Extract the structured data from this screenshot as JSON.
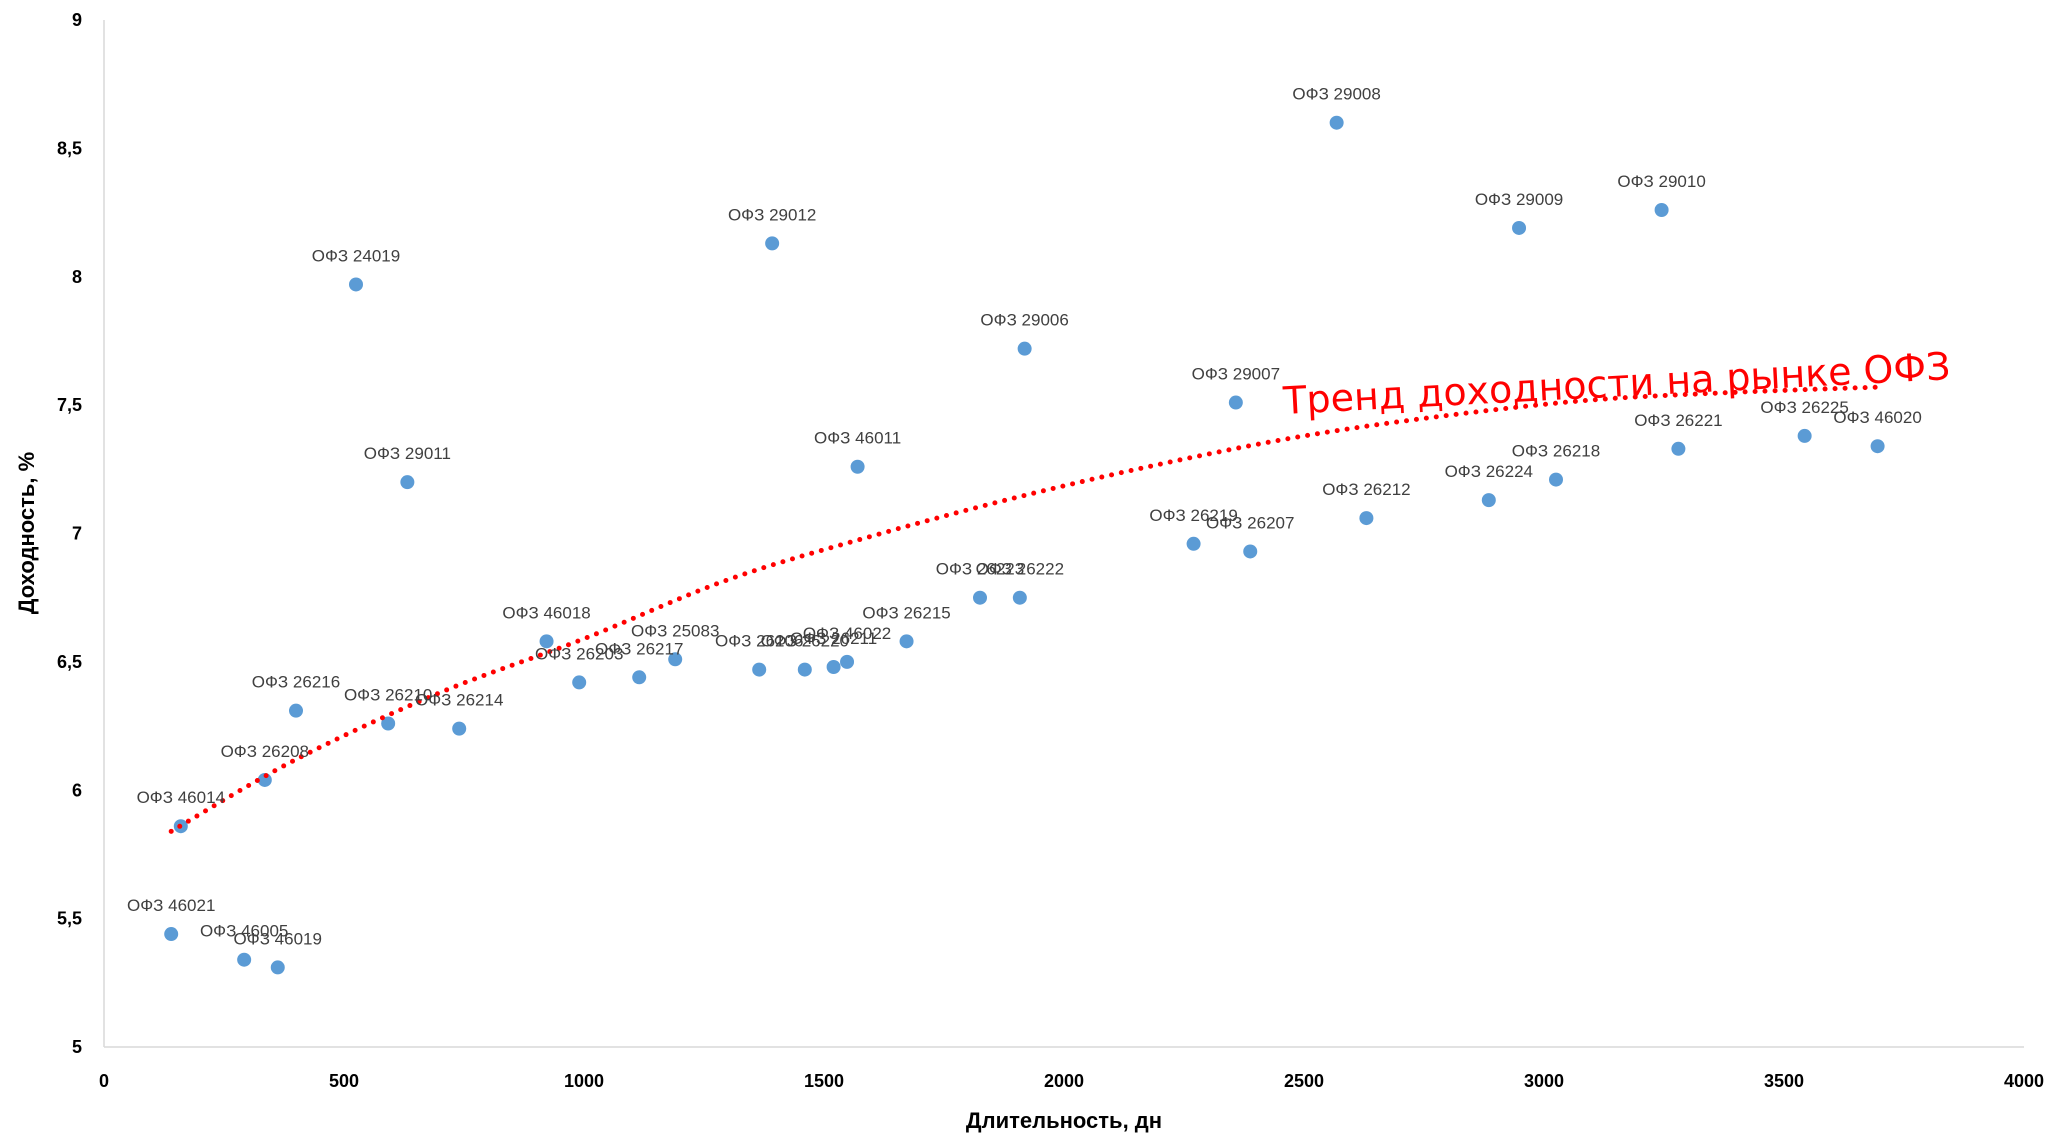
{
  "chart_data": {
    "type": "scatter",
    "xlabel": "Длительность, дн",
    "ylabel": "Доходность, %",
    "xlim": [
      0,
      4000
    ],
    "ylim": [
      5,
      9
    ],
    "xticks": [
      0,
      500,
      1000,
      1500,
      2000,
      2500,
      3000,
      3500,
      4000
    ],
    "xtick_labels": [
      "0",
      "500",
      "1000",
      "1500",
      "2000",
      "2500",
      "3000",
      "3500",
      "4000"
    ],
    "yticks": [
      5,
      5.5,
      6,
      6.5,
      7,
      7.5,
      8,
      8.5,
      9
    ],
    "ytick_labels": [
      "5",
      "5,5",
      "6",
      "6,5",
      "7",
      "7,5",
      "8",
      "8,5",
      "9"
    ],
    "grid": false,
    "point_color": "#5b9bd5",
    "trend_color": "#ff0000",
    "points": [
      {
        "label": "ОФЗ 46014",
        "x": 160,
        "y": 5.86
      },
      {
        "label": "ОФЗ 46021",
        "x": 140,
        "y": 5.44
      },
      {
        "label": "ОФЗ 46005",
        "x": 292,
        "y": 5.34
      },
      {
        "label": "ОФЗ 46019",
        "x": 362,
        "y": 5.31
      },
      {
        "label": "ОФЗ 26208",
        "x": 335,
        "y": 6.04
      },
      {
        "label": "ОФЗ 26216",
        "x": 400,
        "y": 6.31
      },
      {
        "label": "ОФЗ 24019",
        "x": 525,
        "y": 7.97
      },
      {
        "label": "ОФЗ 26210",
        "x": 592,
        "y": 6.26
      },
      {
        "label": "ОФЗ 29011",
        "x": 632,
        "y": 7.2
      },
      {
        "label": "ОФЗ 26214",
        "x": 740,
        "y": 6.24
      },
      {
        "label": "ОФЗ 46018",
        "x": 922,
        "y": 6.58
      },
      {
        "label": "ОФЗ 26203",
        "x": 990,
        "y": 6.42
      },
      {
        "label": "ОФЗ 26217",
        "x": 1115,
        "y": 6.44
      },
      {
        "label": "ОФЗ 25083",
        "x": 1190,
        "y": 6.51
      },
      {
        "label": "ОФЗ 26206",
        "x": 1365,
        "y": 6.47
      },
      {
        "label": "ОФЗ 29012",
        "x": 1392,
        "y": 8.13
      },
      {
        "label": "ОФЗ 26220",
        "x": 1460,
        "y": 6.47
      },
      {
        "label": "ОФЗ 26211",
        "x": 1520,
        "y": 6.48
      },
      {
        "label": "ОФЗ 46022",
        "x": 1548,
        "y": 6.5
      },
      {
        "label": "ОФЗ 46011",
        "x": 1570,
        "y": 7.26
      },
      {
        "label": "ОФЗ 26215",
        "x": 1672,
        "y": 6.58
      },
      {
        "label": "ОФЗ 26223",
        "x": 1825,
        "y": 6.75
      },
      {
        "label": "ОФЗ 26222",
        "x": 1908,
        "y": 6.75
      },
      {
        "label": "ОФЗ 29006",
        "x": 1918,
        "y": 7.72
      },
      {
        "label": "ОФЗ 26219",
        "x": 2270,
        "y": 6.96
      },
      {
        "label": "ОФЗ 29007",
        "x": 2358,
        "y": 7.51
      },
      {
        "label": "ОФЗ 26207",
        "x": 2388,
        "y": 6.93
      },
      {
        "label": "ОФЗ 29008",
        "x": 2568,
        "y": 8.6
      },
      {
        "label": "ОФЗ 26212",
        "x": 2630,
        "y": 7.06
      },
      {
        "label": "ОФЗ 26224",
        "x": 2885,
        "y": 7.13
      },
      {
        "label": "ОФЗ 29009",
        "x": 2948,
        "y": 8.19
      },
      {
        "label": "ОФЗ 26218",
        "x": 3025,
        "y": 7.21
      },
      {
        "label": "ОФЗ 29010",
        "x": 3245,
        "y": 8.26
      },
      {
        "label": "ОФЗ 26221",
        "x": 3280,
        "y": 7.33
      },
      {
        "label": "ОФЗ 26225",
        "x": 3543,
        "y": 7.38
      },
      {
        "label": "ОФЗ 46020",
        "x": 3695,
        "y": 7.34
      }
    ],
    "trend": {
      "label": "Тренд доходности на рынке ОФЗ",
      "x": [
        140,
        400,
        700,
        1000,
        1300,
        1600,
        1900,
        2200,
        2500,
        2800,
        3100,
        3400,
        3695
      ],
      "y": [
        5.84,
        6.12,
        6.38,
        6.59,
        6.82,
        6.99,
        7.14,
        7.27,
        7.38,
        7.46,
        7.52,
        7.55,
        7.57
      ]
    }
  }
}
